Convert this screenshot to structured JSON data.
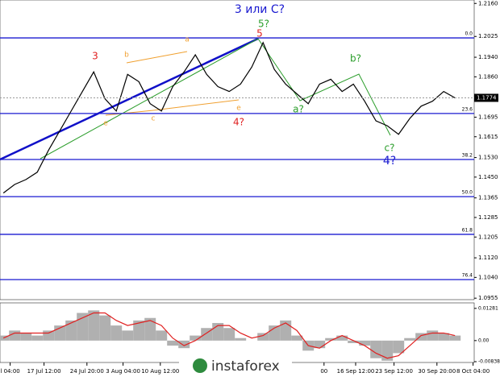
{
  "chart_data": {
    "type": "line",
    "series": [
      {
        "name": "EUR/USD",
        "color": "#000000",
        "values": [
          1.1385,
          1.142,
          1.144,
          1.147,
          1.156,
          1.164,
          1.172,
          1.18,
          1.188,
          1.177,
          1.172,
          1.187,
          1.184,
          1.175,
          1.172,
          1.182,
          1.188,
          1.195,
          1.187,
          1.182,
          1.18,
          1.183,
          1.19,
          1.2,
          1.189,
          1.183,
          1.179,
          1.175,
          1.183,
          1.185,
          1.18,
          1.183,
          1.176,
          1.168,
          1.166,
          1.1625,
          1.169,
          1.174,
          1.176,
          1.18,
          1.1774
        ]
      }
    ],
    "xlim": [
      -0.3,
      41.7
    ],
    "xticks": [
      {
        "value": 0.6,
        "label": "l 04:00"
      },
      {
        "value": 3.6,
        "label": "17 Jul 12:00"
      },
      {
        "value": 7.4,
        "label": "24 Jul 20:00"
      },
      {
        "value": 10.6,
        "label": "3 Aug 04:00"
      },
      {
        "value": 13.9,
        "label": "10 Aug 12:00"
      },
      {
        "value": 28.4,
        "label": "00"
      },
      {
        "value": 31.2,
        "label": "16 Sep 12:00"
      },
      {
        "value": 34.6,
        "label": "23 Sep 12:00"
      },
      {
        "value": 38.4,
        "label": "30 Sep 20:00"
      },
      {
        "value": 41.6,
        "label": "8 Oct 04:00"
      }
    ],
    "ylim": [
      1.0949,
      1.2174
    ],
    "yticks": [
      {
        "value": 1.216,
        "label": "1.2160"
      },
      {
        "value": 1.2025,
        "label": "1.2025"
      },
      {
        "value": 1.194,
        "label": "1.1940"
      },
      {
        "value": 1.186,
        "label": "1.1860"
      },
      {
        "value": 1.1695,
        "label": "1.1695"
      },
      {
        "value": 1.1615,
        "label": "1.1615"
      },
      {
        "value": 1.153,
        "label": "1.1530"
      },
      {
        "value": 1.145,
        "label": "1.1450"
      },
      {
        "value": 1.1365,
        "label": "1.1365"
      },
      {
        "value": 1.1285,
        "label": "1.1285"
      },
      {
        "value": 1.1205,
        "label": "1.1205"
      },
      {
        "value": 1.112,
        "label": "1.1120"
      },
      {
        "value": 1.104,
        "label": "1.1040"
      },
      {
        "value": 1.0955,
        "label": "1.0955"
      }
    ],
    "current_price": 1.1774,
    "fib_levels": [
      {
        "value": 1.2019,
        "label": "0.0"
      },
      {
        "value": 1.171,
        "label": "23.6"
      },
      {
        "value": 1.1522,
        "label": "38.2"
      },
      {
        "value": 1.137,
        "label": "50.0"
      },
      {
        "value": 1.1216,
        "label": "61.8"
      },
      {
        "value": 1.1031,
        "label": "76.4"
      }
    ],
    "annotations": [
      "3 или С?",
      "5?",
      "5",
      "3",
      "b",
      "a",
      "e",
      "c",
      "e",
      "4?",
      "a?",
      "b?",
      "c?",
      "4?"
    ],
    "oscillator": {
      "ylim": [
        -0.0087,
        0.015
      ],
      "yticks": [
        0.01281,
        {
          "value": 0,
          "label": "0.00"
        },
        -0.00838
      ],
      "histogram": [
        0.002,
        0.004,
        0.003,
        0.002,
        0.004,
        0.006,
        0.008,
        0.011,
        0.012,
        0.01,
        0.006,
        0.004,
        0.008,
        0.009,
        0.004,
        -0.002,
        -0.003,
        0.002,
        0.005,
        0.007,
        0.005,
        0.001,
        0.0,
        0.003,
        0.006,
        0.008,
        0.002,
        -0.004,
        -0.003,
        0.001,
        0.002,
        -0.001,
        -0.002,
        -0.007,
        -0.008,
        -0.005,
        0.001,
        0.003,
        0.004,
        0.003,
        0.002
      ],
      "signal": [
        0.001,
        0.003,
        0.003,
        0.003,
        0.003,
        0.005,
        0.007,
        0.009,
        0.011,
        0.011,
        0.008,
        0.006,
        0.007,
        0.008,
        0.006,
        0.001,
        -0.002,
        0.0,
        0.003,
        0.006,
        0.006,
        0.003,
        0.001,
        0.002,
        0.005,
        0.007,
        0.004,
        -0.002,
        -0.003,
        0.0,
        0.002,
        0.0,
        -0.002,
        -0.005,
        -0.007,
        -0.006,
        -0.002,
        0.002,
        0.003,
        0.003,
        0.002
      ]
    },
    "logo": "instaforex"
  }
}
